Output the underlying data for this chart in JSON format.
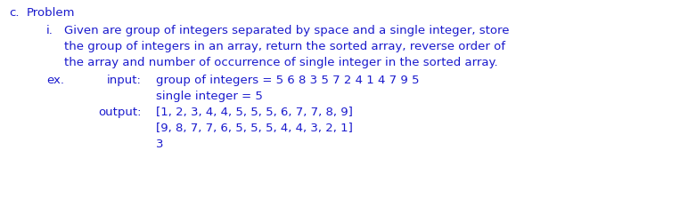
{
  "bg_color": "#ffffff",
  "text_color": "#1a1acd",
  "font_size": 9.5,
  "font_weight": "normal",
  "font_family": "DejaVu Sans",
  "label_c": "c.",
  "label_problem": "Problem",
  "label_i": "i.",
  "line1": "Given are group of integers separated by space and a single integer, store",
  "line2": "the group of integers in an array, return the sorted array, reverse order of",
  "line3": "the array and number of occurrence of single integer in the sorted array.",
  "label_ex": "ex.",
  "input_label": "input:",
  "input_line1": "group of integers = 5 6 8 3 5 7 2 4 1 4 7 9 5",
  "input_line2": "single integer = 5",
  "output_label": "output:",
  "output_line1": "[1, 2, 3, 4, 4, 5, 5, 5, 6, 7, 7, 8, 9]",
  "output_line2": "[9, 8, 7, 7, 6, 5, 5, 5, 4, 4, 3, 2, 1]",
  "output_line3": "3",
  "figw": 7.72,
  "figh": 2.23,
  "dpi": 100
}
